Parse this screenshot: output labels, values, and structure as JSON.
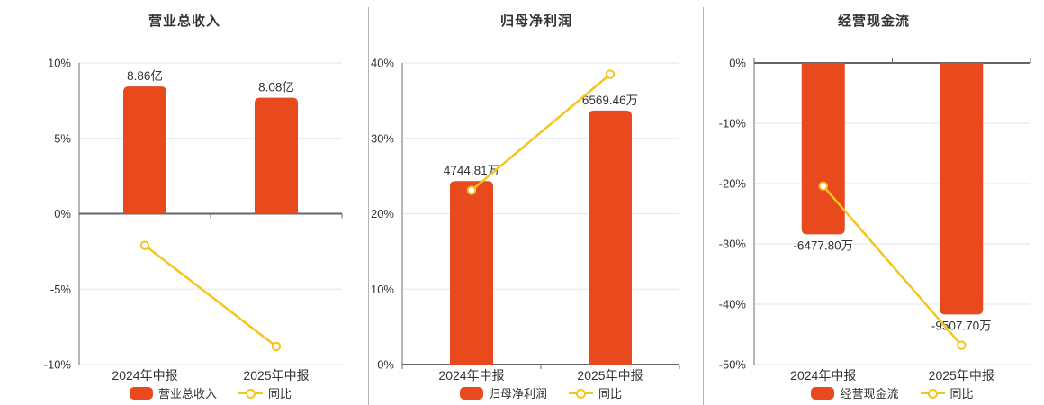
{
  "colors": {
    "bar": "#e8491d",
    "line": "#f5c51e",
    "text": "#333333",
    "grid": "#e2e6f0",
    "zero_axis": "#666666",
    "y_axis_line": "#6e6e6e",
    "divider": "#b3b6ae"
  },
  "chart_data": [
    {
      "type": "bar+line",
      "title": "营业总收入",
      "categories": [
        "2024年中报",
        "2025年中报"
      ],
      "bar_series": {
        "name": "营业总收入",
        "unit": "亿",
        "values": [
          8.86,
          8.08
        ],
        "labels": [
          "8.86亿",
          "8.08亿"
        ],
        "display_axis_range": [
          -10.5,
          10.5
        ]
      },
      "line_series": {
        "name": "同比",
        "unit": "%",
        "values": [
          -2.1,
          -8.8
        ]
      },
      "y_axis": {
        "min": -10,
        "max": 10,
        "ticks": [
          10,
          5,
          0,
          -5,
          -10
        ],
        "tick_labels": [
          "10%",
          "5%",
          "0%",
          "-5%",
          "-10%"
        ]
      },
      "legend": [
        "营业总收入",
        "同比"
      ],
      "grid": true,
      "legend_position": "bottom"
    },
    {
      "type": "bar+line",
      "title": "归母净利润",
      "categories": [
        "2024年中报",
        "2025年中报"
      ],
      "bar_series": {
        "name": "归母净利润",
        "unit": "万",
        "values": [
          4744.81,
          6569.46
        ],
        "labels": [
          "4744.81万",
          "6569.46万"
        ],
        "display_axis_range": [
          0,
          7800
        ]
      },
      "line_series": {
        "name": "同比",
        "unit": "%",
        "values": [
          23.1,
          38.5
        ]
      },
      "y_axis": {
        "min": 0,
        "max": 40,
        "ticks": [
          40,
          30,
          20,
          10,
          0
        ],
        "tick_labels": [
          "40%",
          "30%",
          "20%",
          "10%",
          "0%"
        ]
      },
      "legend": [
        "归母净利润",
        "同比"
      ],
      "grid": true,
      "legend_position": "bottom"
    },
    {
      "type": "bar+line",
      "title": "经营现金流",
      "categories": [
        "2024年中报",
        "2025年中报"
      ],
      "bar_series": {
        "name": "经营现金流",
        "unit": "万",
        "values": [
          -6477.8,
          -9507.7
        ],
        "labels": [
          "-6477.80万",
          "-9507.70万"
        ],
        "display_axis_range": [
          -11400,
          0
        ]
      },
      "line_series": {
        "name": "同比",
        "unit": "%",
        "values": [
          -20.4,
          -46.8
        ]
      },
      "y_axis": {
        "min": -50,
        "max": 0,
        "ticks": [
          0,
          -10,
          -20,
          -30,
          -40,
          -50
        ],
        "tick_labels": [
          "0%",
          "-10%",
          "-20%",
          "-30%",
          "-40%",
          "-50%"
        ]
      },
      "legend": [
        "经营现金流",
        "同比"
      ],
      "grid": true,
      "legend_position": "bottom"
    }
  ]
}
